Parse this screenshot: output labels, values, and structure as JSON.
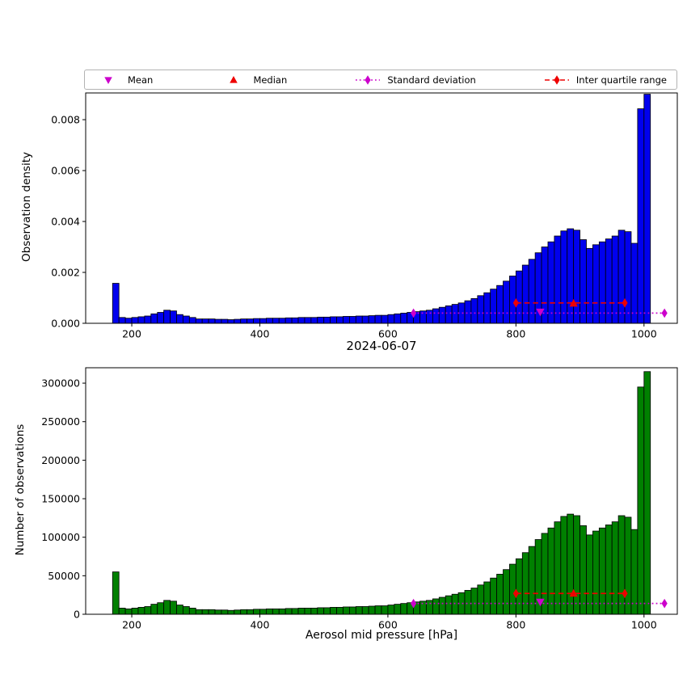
{
  "xlabel": "Aerosol mid pressure [hPa]",
  "legend": {
    "items": [
      {
        "label": "Mean",
        "marker": "triangle-down",
        "color": "#cc00cc",
        "line": "none"
      },
      {
        "label": "Median",
        "marker": "triangle-up",
        "color": "#ee0000",
        "line": "none"
      },
      {
        "label": "Standard deviation",
        "marker": "diamond",
        "color": "#cc00cc",
        "line": "dotted"
      },
      {
        "label": "Inter quartile range",
        "marker": "diamond",
        "color": "#ee0000",
        "line": "dashed"
      }
    ]
  },
  "chart_data": [
    {
      "id": "density",
      "type": "bar",
      "ylabel": "Observation density",
      "bar_color": "#0000ee",
      "edge_color": "#000000",
      "bin_start": 170,
      "bin_width": 10,
      "xlim": [
        128,
        1052
      ],
      "ylim": [
        0,
        0.00905
      ],
      "xticks": [
        200,
        400,
        600,
        800,
        1000
      ],
      "xtick_labels": [
        "200",
        "400",
        "600",
        "800",
        "1000"
      ],
      "yticks": [
        0,
        0.002,
        0.004,
        0.006,
        0.008
      ],
      "ytick_labels": [
        "0.000",
        "0.002",
        "0.004",
        "0.006",
        "0.008"
      ],
      "values": [
        0.001571,
        0.000229,
        0.0002,
        0.000229,
        0.000257,
        0.000286,
        0.000371,
        0.000429,
        0.000514,
        0.000486,
        0.000343,
        0.000286,
        0.000229,
        0.000171,
        0.000171,
        0.000171,
        0.000157,
        0.000157,
        0.000143,
        0.000157,
        0.000171,
        0.000171,
        0.000186,
        0.000186,
        0.0002,
        0.0002,
        0.0002,
        0.000214,
        0.000214,
        0.000229,
        0.000229,
        0.000229,
        0.000243,
        0.000243,
        0.000257,
        0.000257,
        0.000271,
        0.000271,
        0.000286,
        0.000286,
        0.0003,
        0.000314,
        0.000314,
        0.000343,
        0.000371,
        0.0004,
        0.000429,
        0.000457,
        0.000486,
        0.000514,
        0.000571,
        0.000629,
        0.000686,
        0.000743,
        0.0008,
        0.000886,
        0.000971,
        0.001086,
        0.0012,
        0.001343,
        0.001486,
        0.001657,
        0.001857,
        0.002057,
        0.002286,
        0.002514,
        0.002771,
        0.003,
        0.0032,
        0.003429,
        0.003629,
        0.003714,
        0.003657,
        0.003286,
        0.002943,
        0.003086,
        0.0032,
        0.003314,
        0.003429,
        0.003657,
        0.0036,
        0.003143,
        0.008429,
        0.009
      ],
      "markers": {
        "mean": {
          "x": 838,
          "y": 0.00045
        },
        "median": {
          "x": 890,
          "y": 0.00078
        },
        "std": {
          "x1": 640,
          "x2": 1032,
          "y": 0.0004
        },
        "iqr": {
          "x1": 800,
          "x2": 970,
          "y": 0.0008
        }
      }
    },
    {
      "id": "counts",
      "type": "bar",
      "title": "2024-06-07",
      "ylabel": "Number of observations",
      "bar_color": "#008000",
      "edge_color": "#000000",
      "bin_start": 170,
      "bin_width": 10,
      "xlim": [
        128,
        1052
      ],
      "ylim": [
        0,
        320000
      ],
      "xticks": [
        200,
        400,
        600,
        800,
        1000
      ],
      "xtick_labels": [
        "200",
        "400",
        "600",
        "800",
        "1000"
      ],
      "yticks": [
        0,
        50000,
        100000,
        150000,
        200000,
        250000,
        300000
      ],
      "ytick_labels": [
        "0",
        "50000",
        "100000",
        "150000",
        "200000",
        "250000",
        "300000"
      ],
      "values": [
        55000,
        8000,
        7000,
        8000,
        9000,
        10000,
        13000,
        15000,
        18000,
        17000,
        12000,
        10000,
        8000,
        6000,
        6000,
        6000,
        5500,
        5500,
        5000,
        5500,
        6000,
        6000,
        6500,
        6500,
        7000,
        7000,
        7000,
        7500,
        7500,
        8000,
        8000,
        8000,
        8500,
        8500,
        9000,
        9000,
        9500,
        9500,
        10000,
        10000,
        10500,
        11000,
        11000,
        12000,
        13000,
        14000,
        15000,
        16000,
        17000,
        18000,
        20000,
        22000,
        24000,
        26000,
        28000,
        31000,
        34000,
        38000,
        42000,
        47000,
        52000,
        58000,
        65000,
        72000,
        80000,
        88000,
        97000,
        105000,
        112000,
        120000,
        127000,
        130000,
        128000,
        115000,
        103000,
        108000,
        112000,
        116000,
        120000,
        128000,
        126000,
        110000,
        295000,
        315000
      ],
      "markers": {
        "mean": {
          "x": 838,
          "y": 16000
        },
        "median": {
          "x": 890,
          "y": 27000
        },
        "std": {
          "x1": 640,
          "x2": 1032,
          "y": 14000
        },
        "iqr": {
          "x1": 800,
          "x2": 970,
          "y": 27000
        }
      }
    }
  ]
}
